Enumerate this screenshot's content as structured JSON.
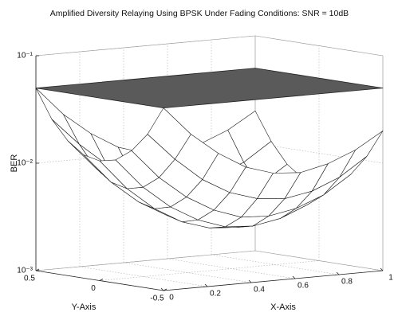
{
  "chart_data": {
    "type": "surface3d",
    "title": "Amplified Diversity Relaying Using BPSK Under Fading Conditions: SNR = 10dB",
    "xlabel": "X-Axis",
    "ylabel": "Y-Axis",
    "zlabel": "BER",
    "xlim": [
      0,
      1
    ],
    "ylim": [
      -0.5,
      0.5
    ],
    "zlim": [
      0.001,
      0.1
    ],
    "zscale": "log",
    "grid": true,
    "xticks": [
      0,
      0.2,
      0.4,
      0.6,
      0.8,
      1
    ],
    "yticks": [
      -0.5,
      0,
      0.5
    ],
    "zticks": [
      {
        "value": 0.001,
        "label": "10⁻³"
      },
      {
        "value": 0.01,
        "label": "10⁻²"
      },
      {
        "value": 0.1,
        "label": "10⁻¹"
      }
    ],
    "series": [
      {
        "color": "#ffffff",
        "edgecolor": "#1a1a1a",
        "x": [
          0,
          0.125,
          0.25,
          0.375,
          0.5,
          0.625,
          0.75,
          0.875,
          1
        ],
        "y": [
          -0.5,
          -0.375,
          -0.25,
          -0.125,
          0,
          0.125,
          0.25,
          0.375,
          0.5
        ],
        "z": [
          [
            0.05,
            0.027,
            0.017,
            0.012,
            0.01,
            0.0096,
            0.011,
            0.014,
            0.02
          ],
          [
            0.027,
            0.015,
            0.0092,
            0.0066,
            0.0055,
            0.0052,
            0.0058,
            0.0074,
            0.011
          ],
          [
            0.018,
            0.0096,
            0.006,
            0.0043,
            0.0035,
            0.0034,
            0.0038,
            0.0048,
            0.0071
          ],
          [
            0.014,
            0.0074,
            0.0046,
            0.0033,
            0.0027,
            0.0026,
            0.0029,
            0.0037,
            0.0055
          ],
          [
            0.013,
            0.0068,
            0.0042,
            0.003,
            0.0025,
            0.0024,
            0.0027,
            0.0034,
            0.005
          ],
          [
            0.014,
            0.0074,
            0.0046,
            0.0033,
            0.0027,
            0.0026,
            0.0029,
            0.0037,
            0.0055
          ],
          [
            0.018,
            0.0096,
            0.006,
            0.0043,
            0.0035,
            0.0034,
            0.0038,
            0.0048,
            0.0071
          ],
          [
            0.027,
            0.015,
            0.0092,
            0.0066,
            0.0055,
            0.0052,
            0.0058,
            0.0074,
            0.011
          ],
          [
            0.05,
            0.027,
            0.017,
            0.012,
            0.01,
            0.0096,
            0.011,
            0.014,
            0.02
          ]
        ]
      },
      {
        "color": "#5a5a5a",
        "edgecolor": "#222222",
        "x": [
          0,
          1
        ],
        "y": [
          -0.5,
          0.5
        ],
        "z": [
          [
            0.05,
            0.05
          ],
          [
            0.05,
            0.05
          ]
        ]
      }
    ]
  }
}
